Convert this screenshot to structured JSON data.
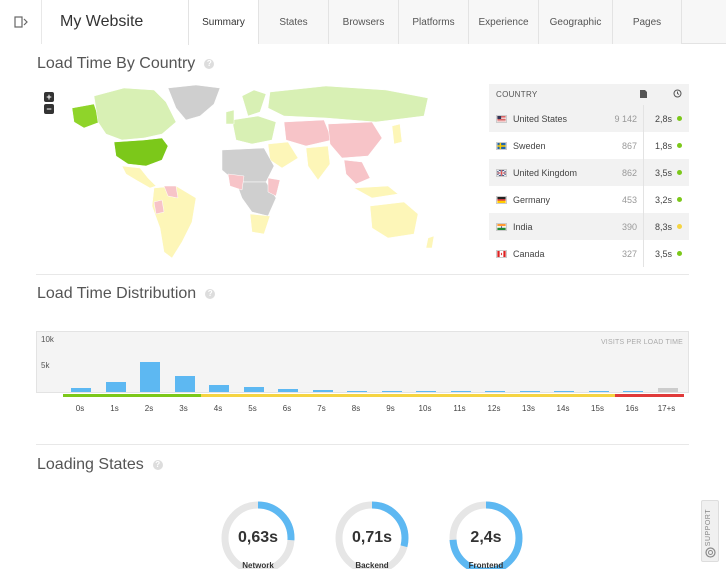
{
  "header": {
    "title": "My Website",
    "tabs": [
      {
        "label": "Summary",
        "active": true
      },
      {
        "label": "States",
        "active": false
      },
      {
        "label": "Browsers",
        "active": false
      },
      {
        "label": "Platforms",
        "active": false
      },
      {
        "label": "Experience",
        "active": false
      },
      {
        "label": "Geographic",
        "active": false
      },
      {
        "label": "Pages",
        "active": false
      }
    ]
  },
  "load_time_by_country": {
    "title": "Load Time By Country",
    "zoom_in": "+",
    "zoom_out": "−",
    "table": {
      "col_country": "COUNTRY",
      "rows": [
        {
          "country": "United States",
          "visits": "9 142",
          "load_time": "2,8s",
          "status": "good"
        },
        {
          "country": "Sweden",
          "visits": "867",
          "load_time": "1,8s",
          "status": "good"
        },
        {
          "country": "United Kingdom",
          "visits": "862",
          "load_time": "3,5s",
          "status": "good"
        },
        {
          "country": "Germany",
          "visits": "453",
          "load_time": "3,2s",
          "status": "good"
        },
        {
          "country": "India",
          "visits": "390",
          "load_time": "8,3s",
          "status": "warn"
        },
        {
          "country": "Canada",
          "visits": "327",
          "load_time": "3,5s",
          "status": "good"
        }
      ]
    }
  },
  "load_time_distribution": {
    "title": "Load Time Distribution",
    "caption": "VISITS PER LOAD TIME",
    "y_ticks": [
      "10k",
      "5k"
    ]
  },
  "loading_states": {
    "title": "Loading States",
    "gauges": [
      {
        "label": "Network",
        "value": "0,63s",
        "fill": 0.26
      },
      {
        "label": "Backend",
        "value": "0,71s",
        "fill": 0.29
      },
      {
        "label": "Frontend",
        "value": "2,4s",
        "fill": 0.74
      }
    ]
  },
  "support": {
    "label": "SUPPORT"
  },
  "colors": {
    "good": "#7cc81a",
    "warn": "#f5d442",
    "bad": "#e03a3a",
    "bar": "#5db8f2",
    "gauge_fill": "#5db8f2",
    "gauge_track": "#e6e6e6"
  },
  "chart_data": {
    "type": "bar",
    "title": "Load Time Distribution",
    "caption": "VISITS PER LOAD TIME",
    "categories": [
      "0s",
      "1s",
      "2s",
      "3s",
      "4s",
      "5s",
      "6s",
      "7s",
      "8s",
      "9s",
      "10s",
      "11s",
      "12s",
      "13s",
      "14s",
      "15s",
      "16s",
      "17+s"
    ],
    "values": [
      700,
      1700,
      5100,
      2700,
      1200,
      800,
      550,
      350,
      250,
      150,
      100,
      30,
      20,
      15,
      10,
      10,
      10,
      700
    ],
    "ylim": [
      0,
      10000
    ],
    "y_ticks": [
      "10k",
      "5k"
    ],
    "zones": [
      {
        "from": "0s",
        "to": "3s",
        "color": "good"
      },
      {
        "from": "4s",
        "to": "15s",
        "color": "warn"
      },
      {
        "from": "16s",
        "to": "17+s",
        "color": "bad"
      }
    ]
  }
}
